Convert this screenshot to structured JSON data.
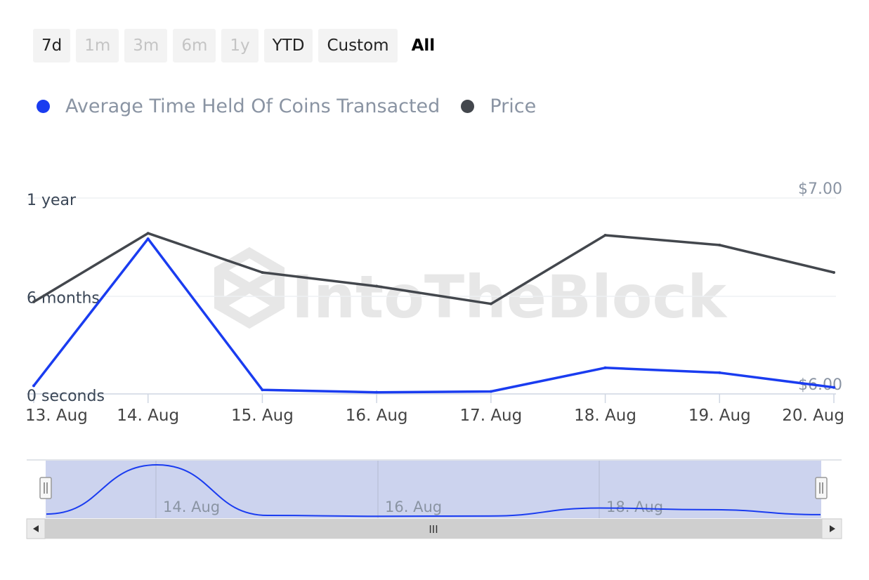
{
  "range_buttons": [
    {
      "label": "7d",
      "state": "normal"
    },
    {
      "label": "1m",
      "state": "disabled"
    },
    {
      "label": "3m",
      "state": "disabled"
    },
    {
      "label": "6m",
      "state": "disabled"
    },
    {
      "label": "1y",
      "state": "disabled"
    },
    {
      "label": "YTD",
      "state": "normal"
    },
    {
      "label": "Custom",
      "state": "normal"
    },
    {
      "label": "All",
      "state": "active"
    }
  ],
  "legend": [
    {
      "label": "Average Time Held Of Coins Transacted",
      "color": "#1a3cf0"
    },
    {
      "label": "Price",
      "color": "#43474d"
    }
  ],
  "watermark": "IntoTheBlock",
  "navigator": {
    "tick_labels": [
      "14. Aug",
      "16. Aug",
      "18. Aug"
    ],
    "scrollbar_grip": "III"
  },
  "chart_data": {
    "type": "line",
    "x": [
      "13. Aug",
      "14. Aug",
      "15. Aug",
      "16. Aug",
      "17. Aug",
      "18. Aug",
      "19. Aug",
      "20. Aug"
    ],
    "series": [
      {
        "name": "Average Time Held Of Coins Transacted",
        "unit": "months",
        "axis": "left",
        "color": "#1a3cf0",
        "values": [
          0.5,
          9.5,
          0.25,
          0.1,
          0.15,
          1.6,
          1.3,
          0.4
        ]
      },
      {
        "name": "Price",
        "unit": "USD",
        "axis": "right",
        "color": "#43474d",
        "values": [
          6.47,
          6.82,
          6.62,
          6.55,
          6.46,
          6.81,
          6.76,
          6.62
        ]
      }
    ],
    "y_left": {
      "ticks": [
        {
          "value": 0,
          "label": "0 seconds"
        },
        {
          "value": 6,
          "label": "6 months"
        },
        {
          "value": 12,
          "label": "1 year"
        }
      ],
      "range": [
        0,
        12
      ]
    },
    "y_right": {
      "ticks": [
        {
          "value": 6.0,
          "label": "$6.00"
        },
        {
          "value": 7.0,
          "label": "$7.00"
        }
      ],
      "range": [
        6.0,
        7.0
      ]
    },
    "grid": true,
    "legend_position": "top-left"
  }
}
